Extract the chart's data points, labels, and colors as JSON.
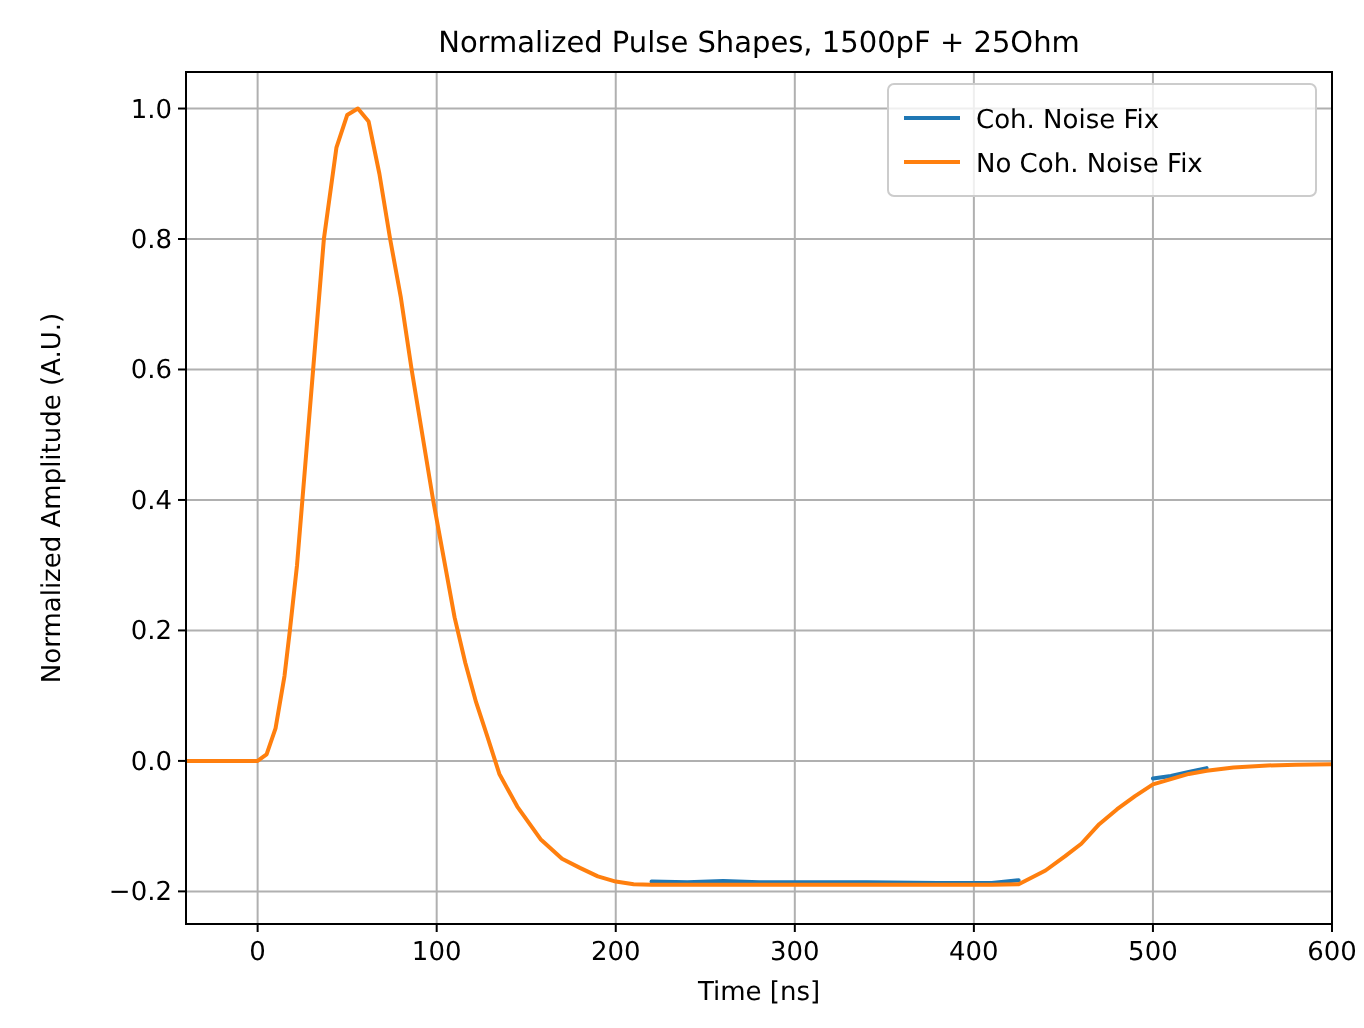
{
  "chart_data": {
    "type": "line",
    "title": "Normalized Pulse Shapes, 1500pF + 25Ohm",
    "xlabel": "Time [ns]",
    "ylabel": "Normalized Amplitude (A.U.)",
    "x": [
      -40,
      -20,
      0,
      5,
      10,
      15,
      18,
      22,
      25,
      31,
      37,
      44,
      50,
      56,
      62,
      68,
      74,
      80,
      86,
      92,
      98,
      104,
      110,
      116,
      122,
      128,
      135,
      145,
      158,
      170,
      180,
      190,
      200,
      210,
      220,
      240,
      260,
      280,
      300,
      340,
      380,
      410,
      425,
      440,
      451,
      460,
      470,
      480,
      490,
      500,
      510,
      520,
      530,
      545,
      564,
      580,
      600
    ],
    "series": [
      {
        "name": "Coh. Noise Fix",
        "color": "#1f77b4",
        "values": [
          null,
          null,
          null,
          null,
          null,
          null,
          null,
          null,
          null,
          null,
          null,
          null,
          null,
          null,
          null,
          null,
          null,
          null,
          null,
          null,
          null,
          null,
          null,
          null,
          null,
          null,
          null,
          null,
          null,
          null,
          null,
          null,
          null,
          null,
          -0.185,
          -0.186,
          -0.184,
          -0.186,
          -0.186,
          -0.186,
          -0.187,
          -0.187,
          -0.183,
          null,
          null,
          null,
          null,
          null,
          null,
          -0.027,
          -0.023,
          -0.017,
          -0.011,
          null,
          null,
          null,
          null
        ]
      },
      {
        "name": "No Coh. Noise Fix",
        "color": "#ff7f0e",
        "values": [
          0,
          0,
          0,
          0.01,
          0.05,
          0.13,
          0.2,
          0.3,
          0.4,
          0.6,
          0.8,
          0.94,
          0.99,
          1.0,
          0.98,
          0.9,
          0.8,
          0.71,
          0.6,
          0.5,
          0.4,
          0.31,
          0.22,
          0.15,
          0.09,
          0.04,
          -0.02,
          -0.07,
          -0.12,
          -0.15,
          -0.164,
          -0.177,
          -0.185,
          -0.189,
          -0.19,
          -0.19,
          -0.19,
          -0.19,
          -0.19,
          -0.19,
          -0.19,
          -0.19,
          -0.189,
          -0.168,
          -0.146,
          -0.127,
          -0.097,
          -0.074,
          -0.054,
          -0.036,
          -0.028,
          -0.02,
          -0.015,
          -0.01,
          -0.007,
          -0.006,
          -0.005
        ]
      }
    ],
    "xlim": [
      -40,
      600
    ],
    "xticks": [
      0,
      100,
      200,
      300,
      400,
      500,
      600
    ],
    "ylim": [
      -0.25,
      1.056
    ],
    "yticks": [
      {
        "value": -0.2,
        "label": "−0.2"
      },
      {
        "value": 0,
        "label": "0.0"
      },
      {
        "value": 0.2,
        "label": "0.2"
      },
      {
        "value": 0.4,
        "label": "0.4"
      },
      {
        "value": 0.6,
        "label": "0.6"
      },
      {
        "value": 0.8,
        "label": "0.8"
      },
      {
        "value": 1.0,
        "label": "1.0"
      }
    ],
    "grid": true,
    "legend": "top right",
    "marker": "none",
    "line_style": "solid"
  }
}
